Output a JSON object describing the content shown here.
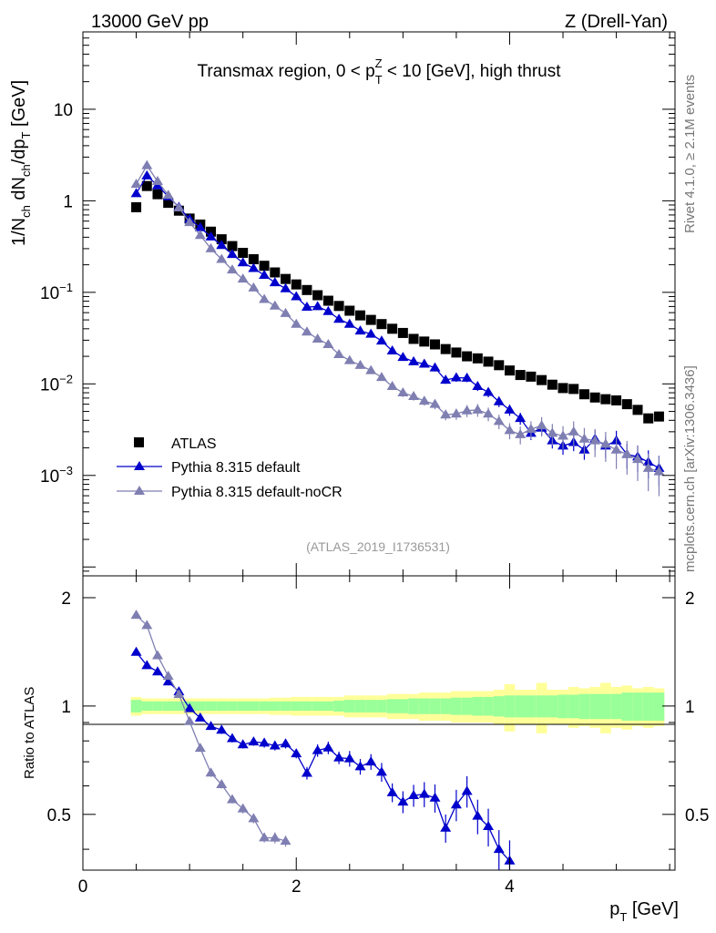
{
  "header": {
    "left": "13000 GeV pp",
    "right": "Z (Drell-Yan)",
    "side_top": "Rivet 4.1.0, ≥ 2.1M events",
    "side_bottom": "mcplots.cern.ch [arXiv:1306.3436]"
  },
  "chart_data": {
    "type": "scatter",
    "title": "Transmax region, 0 < p_T^Z < 10 [GeV], high thrust",
    "analysis_label": "(ATLAS_2019_I1736531)",
    "xlabel": "p_T [GeV]",
    "ylabel": "1/N_ch dN_ch/dp_T [GeV]",
    "ratio_ylabel": "Ratio to ATLAS",
    "xlim": [
      0,
      5.55
    ],
    "ylim_main": [
      8e-05,
      70
    ],
    "ylim_ratio": [
      0.35,
      2.3
    ],
    "x_ticks": [
      "0",
      "2",
      "4"
    ],
    "y_ticks_main": [
      "10",
      "1",
      "10^-1",
      "10^-2",
      "10^-3"
    ],
    "y_ticks_ratio": [
      "2",
      "1",
      "0.5"
    ],
    "x": [
      0.5,
      0.6,
      0.7,
      0.8,
      0.9,
      1.0,
      1.1,
      1.2,
      1.3,
      1.4,
      1.5,
      1.6,
      1.7,
      1.8,
      1.9,
      2.0,
      2.1,
      2.2,
      2.3,
      2.4,
      2.5,
      2.6,
      2.7,
      2.8,
      2.9,
      3.0,
      3.1,
      3.2,
      3.3,
      3.4,
      3.5,
      3.6,
      3.7,
      3.8,
      3.9,
      4.0,
      4.1,
      4.2,
      4.3,
      4.4,
      4.5,
      4.6,
      4.7,
      4.8,
      4.9,
      5.0,
      5.1,
      5.2,
      5.3,
      5.4
    ],
    "series": [
      {
        "name": "ATLAS",
        "color": "#000000",
        "marker": "square",
        "values": [
          0.85,
          1.45,
          1.18,
          0.95,
          0.78,
          0.64,
          0.55,
          0.46,
          0.38,
          0.32,
          0.27,
          0.23,
          0.195,
          0.165,
          0.14,
          0.122,
          0.106,
          0.093,
          0.081,
          0.071,
          0.063,
          0.056,
          0.05,
          0.045,
          0.04,
          0.036,
          0.031,
          0.029,
          0.027,
          0.024,
          0.022,
          0.02,
          0.019,
          0.0175,
          0.016,
          0.014,
          0.0125,
          0.012,
          0.011,
          0.0098,
          0.009,
          0.0088,
          0.0077,
          0.0071,
          0.0068,
          0.0066,
          0.006,
          0.0052,
          0.0042,
          0.0044
        ],
        "ratio_band_inner": [
          0.04,
          0.03,
          0.03,
          0.03,
          0.03,
          0.03,
          0.03,
          0.03,
          0.03,
          0.03,
          0.03,
          0.03,
          0.03,
          0.03,
          0.03,
          0.03,
          0.03,
          0.03,
          0.03,
          0.035,
          0.04,
          0.04,
          0.04,
          0.04,
          0.045,
          0.045,
          0.05,
          0.05,
          0.05,
          0.05,
          0.055,
          0.055,
          0.06,
          0.06,
          0.065,
          0.07,
          0.07,
          0.07,
          0.07,
          0.07,
          0.075,
          0.075,
          0.08,
          0.08,
          0.08,
          0.08,
          0.09,
          0.09,
          0.09,
          0.09
        ],
        "ratio_band_outer": [
          0.06,
          0.05,
          0.05,
          0.05,
          0.05,
          0.05,
          0.05,
          0.05,
          0.05,
          0.05,
          0.05,
          0.05,
          0.05,
          0.055,
          0.055,
          0.06,
          0.06,
          0.06,
          0.06,
          0.06,
          0.07,
          0.07,
          0.07,
          0.07,
          0.08,
          0.08,
          0.08,
          0.09,
          0.09,
          0.09,
          0.1,
          0.1,
          0.1,
          0.1,
          0.11,
          0.15,
          0.11,
          0.11,
          0.16,
          0.11,
          0.11,
          0.13,
          0.12,
          0.13,
          0.16,
          0.13,
          0.14,
          0.12,
          0.13,
          0.12
        ]
      },
      {
        "name": "Pythia 8.315 default",
        "color": "#0000cc",
        "marker": "triangle",
        "values": [
          1.2,
          1.88,
          1.47,
          1.11,
          0.855,
          0.63,
          0.51,
          0.404,
          0.326,
          0.26,
          0.211,
          0.183,
          0.154,
          0.128,
          0.11,
          0.09,
          0.069,
          0.07,
          0.062,
          0.051,
          0.045,
          0.038,
          0.035,
          0.0295,
          0.023,
          0.0195,
          0.0175,
          0.0165,
          0.015,
          0.011,
          0.0117,
          0.0116,
          0.0094,
          0.0081,
          0.0064,
          0.0052,
          0.0042,
          0.0029,
          0.0033,
          0.0024,
          0.0021,
          0.0023,
          0.0019,
          0.0025,
          0.0021,
          0.0024,
          0.0017,
          0.0016,
          0.0014,
          0.0012
        ],
        "errors": [
          0.02,
          0.02,
          0.02,
          0.02,
          0.02,
          0.02,
          0.02,
          0.02,
          0.025,
          0.025,
          0.025,
          0.025,
          0.03,
          0.03,
          0.03,
          0.03,
          0.04,
          0.04,
          0.04,
          0.04,
          0.05,
          0.05,
          0.05,
          0.06,
          0.06,
          0.07,
          0.07,
          0.08,
          0.09,
          0.09,
          0.1,
          0.1,
          0.11,
          0.12,
          0.13,
          0.14,
          0.15,
          0.16,
          0.17,
          0.18,
          0.2,
          0.2,
          0.22,
          0.24,
          0.26,
          0.28,
          0.3,
          0.32,
          0.34,
          0.36
        ]
      },
      {
        "name": "Pythia 8.315 default-noCR",
        "color": "#7f7fb2",
        "marker": "triangle",
        "values": [
          1.52,
          2.43,
          1.63,
          1.15,
          0.84,
          0.58,
          0.42,
          0.3,
          0.23,
          0.176,
          0.14,
          0.112,
          0.084,
          0.071,
          0.059,
          0.045,
          0.037,
          0.031,
          0.027,
          0.021,
          0.018,
          0.016,
          0.014,
          0.0118,
          0.0094,
          0.008,
          0.0073,
          0.0065,
          0.006,
          0.0046,
          0.0047,
          0.0051,
          0.0052,
          0.0047,
          0.0039,
          0.0031,
          0.0028,
          0.0032,
          0.0035,
          0.0029,
          0.0027,
          0.003,
          0.0025,
          0.0024,
          0.0022,
          0.0019,
          0.0017,
          0.0015,
          0.0012,
          0.0011
        ],
        "errors": [
          0.02,
          0.02,
          0.02,
          0.02,
          0.02,
          0.02,
          0.02,
          0.025,
          0.025,
          0.025,
          0.03,
          0.03,
          0.03,
          0.035,
          0.035,
          0.04,
          0.045,
          0.05,
          0.05,
          0.06,
          0.06,
          0.07,
          0.07,
          0.08,
          0.09,
          0.1,
          0.1,
          0.11,
          0.12,
          0.13,
          0.14,
          0.15,
          0.16,
          0.17,
          0.18,
          0.2,
          0.22,
          0.22,
          0.24,
          0.26,
          0.28,
          0.3,
          0.32,
          0.34,
          0.36,
          0.38,
          0.4,
          0.42,
          0.44,
          0.46
        ]
      }
    ]
  }
}
